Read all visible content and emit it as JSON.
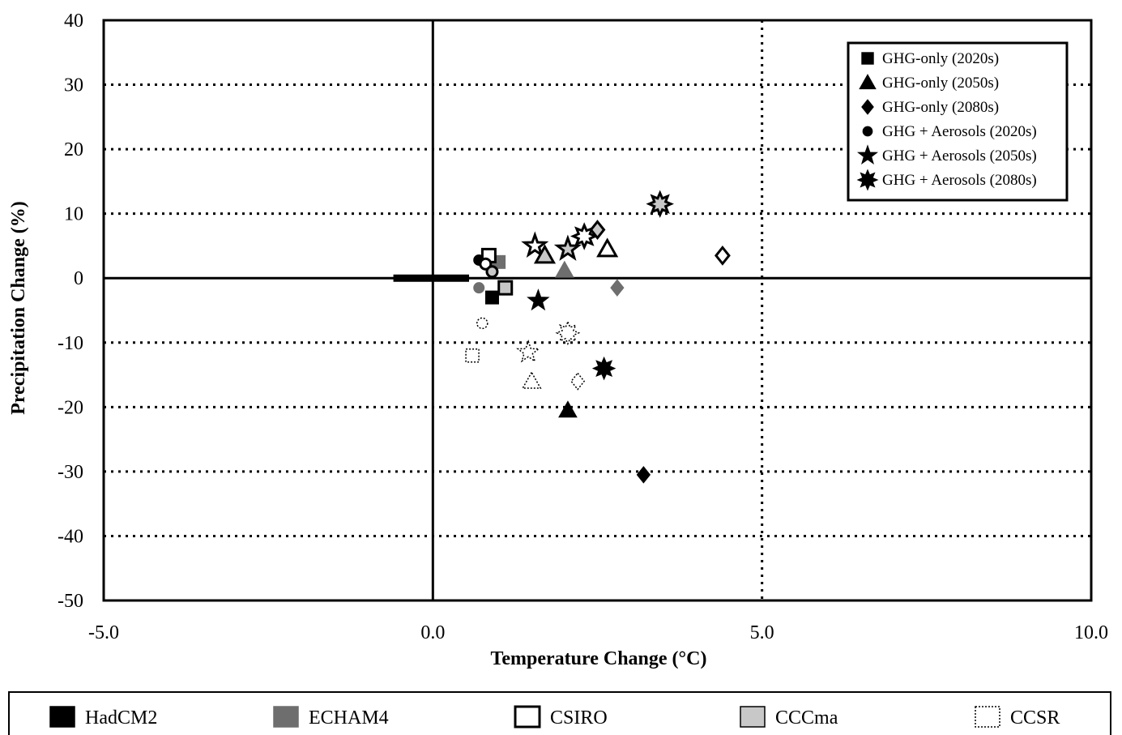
{
  "chart_data": {
    "type": "scatter",
    "title": "",
    "xlabel": "Temperature Change (°C)",
    "ylabel": "Precipitation Change (%)",
    "xlim": [
      -5,
      10
    ],
    "ylim": [
      -50,
      40
    ],
    "x_ticks": [
      "-5.0",
      "0.0",
      "5.0",
      "10.0"
    ],
    "y_ticks": [
      "40",
      "30",
      "20",
      "10",
      "0",
      "-10",
      "-20",
      "-30",
      "-40",
      "-50"
    ],
    "grid": "dotted horizontal and vertical gridlines",
    "legend_position": "top-right",
    "scenario_legend": [
      {
        "name": "GHG-only (2020s)",
        "marker": "square"
      },
      {
        "name": "GHG-only (2050s)",
        "marker": "triangle"
      },
      {
        "name": "GHG-only (2080s)",
        "marker": "diamond"
      },
      {
        "name": "GHG + Aerosols (2020s)",
        "marker": "circle"
      },
      {
        "name": "GHG + Aerosols (2050s)",
        "marker": "star"
      },
      {
        "name": "GHG + Aerosols (2080s)",
        "marker": "sunburst"
      }
    ],
    "model_legend": [
      {
        "name": "HadCM2",
        "style": "black"
      },
      {
        "name": "ECHAM4",
        "style": "gray"
      },
      {
        "name": "CSIRO",
        "style": "white"
      },
      {
        "name": "CCCma",
        "style": "light"
      },
      {
        "name": "CCSR",
        "style": "dashed"
      }
    ],
    "points": [
      {
        "model": "HadCM2",
        "scenario": "GHG-only (2020s)",
        "x": 0.9,
        "y": -3
      },
      {
        "model": "HadCM2",
        "scenario": "GHG-only (2050s)",
        "x": 2.05,
        "y": -20.5
      },
      {
        "model": "HadCM2",
        "scenario": "GHG-only (2080s)",
        "x": 3.2,
        "y": -30.5
      },
      {
        "model": "HadCM2",
        "scenario": "GHG + Aerosols (2020s)",
        "x": 0.7,
        "y": 2.8
      },
      {
        "model": "HadCM2",
        "scenario": "GHG + Aerosols (2050s)",
        "x": 1.6,
        "y": -3.5
      },
      {
        "model": "HadCM2",
        "scenario": "GHG + Aerosols (2080s)",
        "x": 2.6,
        "y": -14
      },
      {
        "model": "ECHAM4",
        "scenario": "GHG-only (2020s)",
        "x": 1.0,
        "y": 2.5
      },
      {
        "model": "ECHAM4",
        "scenario": "GHG-only (2050s)",
        "x": 2.0,
        "y": 1.2
      },
      {
        "model": "ECHAM4",
        "scenario": "GHG-only (2080s)",
        "x": 2.8,
        "y": -1.5
      },
      {
        "model": "ECHAM4",
        "scenario": "GHG + Aerosols (2020s)",
        "x": 0.7,
        "y": -1.5
      },
      {
        "model": "CSIRO",
        "scenario": "GHG-only (2020s)",
        "x": 0.85,
        "y": 3.5
      },
      {
        "model": "CSIRO",
        "scenario": "GHG-only (2050s)",
        "x": 2.65,
        "y": 4.5
      },
      {
        "model": "CSIRO",
        "scenario": "GHG-only (2080s)",
        "x": 4.4,
        "y": 3.5
      },
      {
        "model": "CSIRO",
        "scenario": "GHG + Aerosols (2020s)",
        "x": 0.8,
        "y": 2.2
      },
      {
        "model": "CSIRO",
        "scenario": "GHG + Aerosols (2050s)",
        "x": 1.55,
        "y": 5
      },
      {
        "model": "CSIRO",
        "scenario": "GHG + Aerosols (2080s)",
        "x": 2.3,
        "y": 6.5
      },
      {
        "model": "CCCma",
        "scenario": "GHG-only (2020s)",
        "x": 1.1,
        "y": -1.5
      },
      {
        "model": "CCCma",
        "scenario": "GHG-only (2050s)",
        "x": 1.7,
        "y": 3.5
      },
      {
        "model": "CCCma",
        "scenario": "GHG-only (2080s)",
        "x": 2.5,
        "y": 7.5
      },
      {
        "model": "CCCma",
        "scenario": "GHG + Aerosols (2020s)",
        "x": 0.9,
        "y": 1
      },
      {
        "model": "CCCma",
        "scenario": "GHG + Aerosols (2050s)",
        "x": 2.05,
        "y": 4.5
      },
      {
        "model": "CCCma",
        "scenario": "GHG + Aerosols (2080s)",
        "x": 3.45,
        "y": 11.5
      },
      {
        "model": "CCSR",
        "scenario": "GHG-only (2020s)",
        "x": 0.6,
        "y": -12
      },
      {
        "model": "CCSR",
        "scenario": "GHG-only (2050s)",
        "x": 1.5,
        "y": -16
      },
      {
        "model": "CCSR",
        "scenario": "GHG-only (2080s)",
        "x": 2.2,
        "y": -16
      },
      {
        "model": "CCSR",
        "scenario": "GHG + Aerosols (2020s)",
        "x": 0.75,
        "y": -7
      },
      {
        "model": "CCSR",
        "scenario": "GHG + Aerosols (2050s)",
        "x": 1.45,
        "y": -11.5
      },
      {
        "model": "CCSR",
        "scenario": "GHG + Aerosols (2080s)",
        "x": 2.05,
        "y": -8.5
      }
    ],
    "reference_line": {
      "x_start": -0.6,
      "x_end": 0.55,
      "y": 0
    }
  },
  "colors": {
    "HadCM2": "#000000",
    "ECHAM4": "#6e6e6e",
    "CSIRO": "#ffffff",
    "CCCma": "#c8c8c8",
    "CCSR": "#ffffff"
  }
}
